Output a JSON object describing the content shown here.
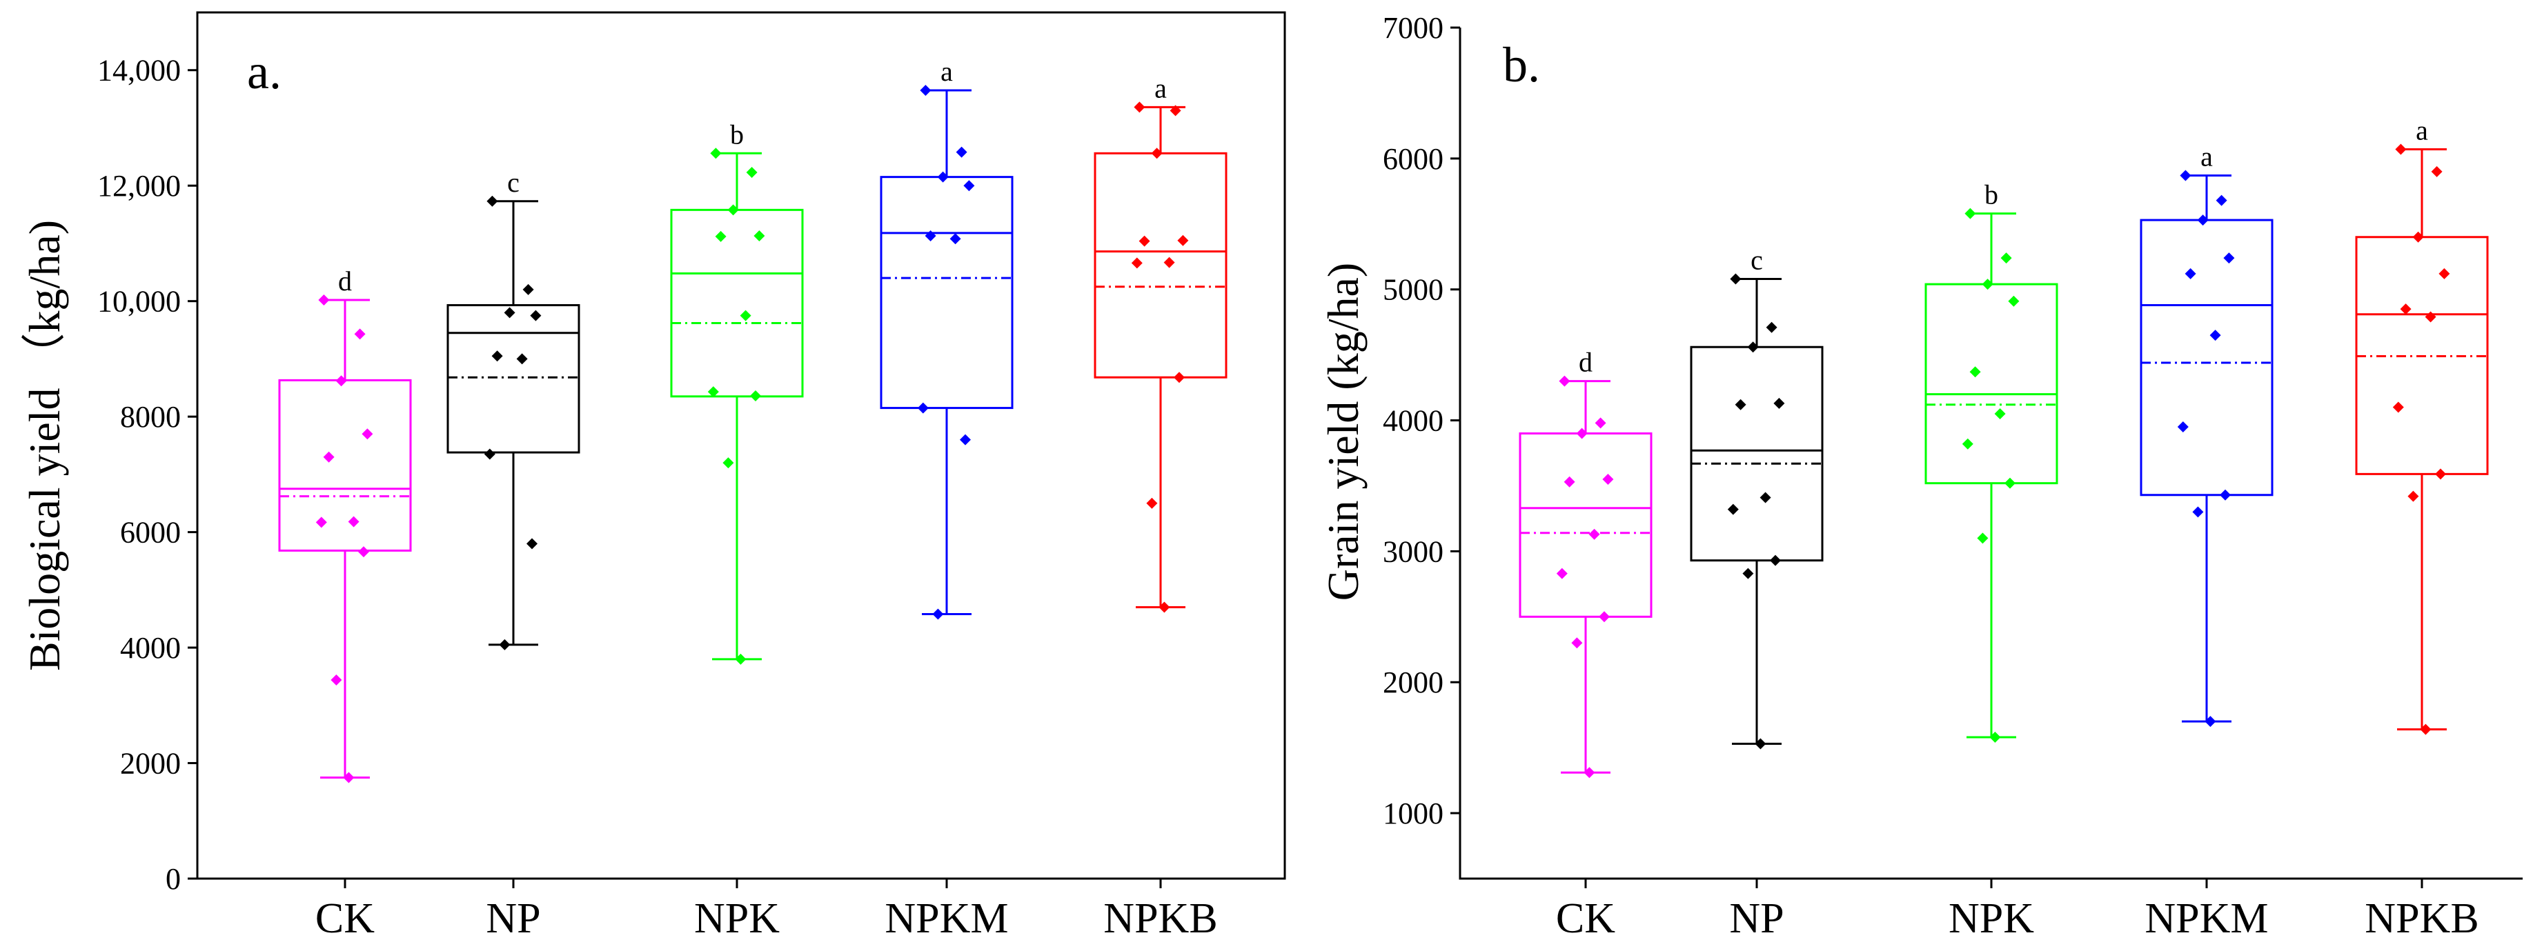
{
  "chart_data": [
    {
      "type": "box",
      "panel_label": "a.",
      "ylabel": "Biological yield （kg/ha)",
      "xlabel": "",
      "ylim": [
        0,
        15000
      ],
      "yticks": [
        0,
        2000,
        4000,
        6000,
        8000,
        10000,
        12000,
        14000
      ],
      "ytick_labels": [
        "0",
        "2000",
        "4000",
        "6000",
        "8000",
        "10,000",
        "12,000",
        "14,000"
      ],
      "categories": [
        "CK",
        "NP",
        "NPK",
        "NPKM",
        "NPKB"
      ],
      "colors": [
        "#ff00ff",
        "#000000",
        "#00ff00",
        "#0000ff",
        "#ff0000"
      ],
      "boxes": [
        {
          "name": "CK",
          "min": 1750,
          "q1": 5680,
          "median": 6750,
          "mean": 6620,
          "q3": 8630,
          "max": 10020,
          "sig": "d",
          "points": [
            10020,
            9430,
            8620,
            7700,
            7300,
            6180,
            6170,
            5660,
            3440,
            1750
          ]
        },
        {
          "name": "NP",
          "min": 4050,
          "q1": 7380,
          "median": 9450,
          "mean": 8680,
          "q3": 9930,
          "max": 11730,
          "sig": "c",
          "points": [
            11730,
            10200,
            9800,
            9750,
            9050,
            9000,
            7350,
            5800,
            4050
          ]
        },
        {
          "name": "NPK",
          "min": 3800,
          "q1": 8350,
          "median": 10480,
          "mean": 9620,
          "q3": 11580,
          "max": 12560,
          "sig": "b",
          "points": [
            12560,
            12230,
            11580,
            11130,
            11120,
            9750,
            8430,
            8360,
            7200,
            3800
          ]
        },
        {
          "name": "NPKM",
          "min": 4580,
          "q1": 8150,
          "median": 11180,
          "mean": 10400,
          "q3": 12150,
          "max": 13650,
          "sig": "a",
          "points": [
            13650,
            12580,
            12150,
            12000,
            11130,
            11080,
            8150,
            7600,
            4580
          ]
        },
        {
          "name": "NPKB",
          "min": 4700,
          "q1": 8680,
          "median": 10860,
          "mean": 10250,
          "q3": 12560,
          "max": 13360,
          "sig": "a",
          "points": [
            13360,
            13300,
            12560,
            11050,
            11040,
            10670,
            10660,
            8680,
            6500,
            4700
          ]
        }
      ]
    },
    {
      "type": "box",
      "panel_label": "b.",
      "ylabel": "Grain yield (kg/ha)",
      "xlabel": "",
      "ylim": [
        500,
        7000
      ],
      "yticks": [
        1000,
        2000,
        3000,
        4000,
        5000,
        6000,
        7000
      ],
      "ytick_labels": [
        "1000",
        "2000",
        "3000",
        "4000",
        "5000",
        "6000",
        "7000"
      ],
      "categories": [
        "CK",
        "NP",
        "NPK",
        "NPKM",
        "NPKB"
      ],
      "colors": [
        "#ff00ff",
        "#000000",
        "#00ff00",
        "#0000ff",
        "#ff0000"
      ],
      "boxes": [
        {
          "name": "CK",
          "min": 1310,
          "q1": 2500,
          "median": 3330,
          "mean": 3140,
          "q3": 3900,
          "max": 4300,
          "sig": "d",
          "points": [
            4300,
            3980,
            3900,
            3550,
            3530,
            3130,
            2830,
            2500,
            2300,
            1310
          ]
        },
        {
          "name": "NP",
          "min": 1530,
          "q1": 2930,
          "median": 3770,
          "mean": 3670,
          "q3": 4560,
          "max": 5080,
          "sig": "c",
          "points": [
            5080,
            4710,
            4560,
            4130,
            4120,
            3410,
            3320,
            2930,
            2830,
            1530
          ]
        },
        {
          "name": "NPK",
          "min": 1580,
          "q1": 3520,
          "median": 4200,
          "mean": 4120,
          "q3": 5040,
          "max": 5580,
          "sig": "b",
          "points": [
            5580,
            5240,
            5040,
            4910,
            4370,
            4050,
            3820,
            3520,
            3100,
            1580
          ]
        },
        {
          "name": "NPKM",
          "min": 1700,
          "q1": 3430,
          "median": 4880,
          "mean": 4440,
          "q3": 5530,
          "max": 5870,
          "sig": "a",
          "points": [
            5870,
            5680,
            5530,
            5240,
            5120,
            4650,
            3950,
            3430,
            3300,
            1700
          ]
        },
        {
          "name": "NPKB",
          "min": 1640,
          "q1": 3590,
          "median": 4810,
          "mean": 4490,
          "q3": 5400,
          "max": 6070,
          "sig": "a",
          "points": [
            6070,
            5900,
            5400,
            5120,
            4850,
            4790,
            4100,
            3590,
            3420,
            1640
          ]
        }
      ]
    }
  ]
}
